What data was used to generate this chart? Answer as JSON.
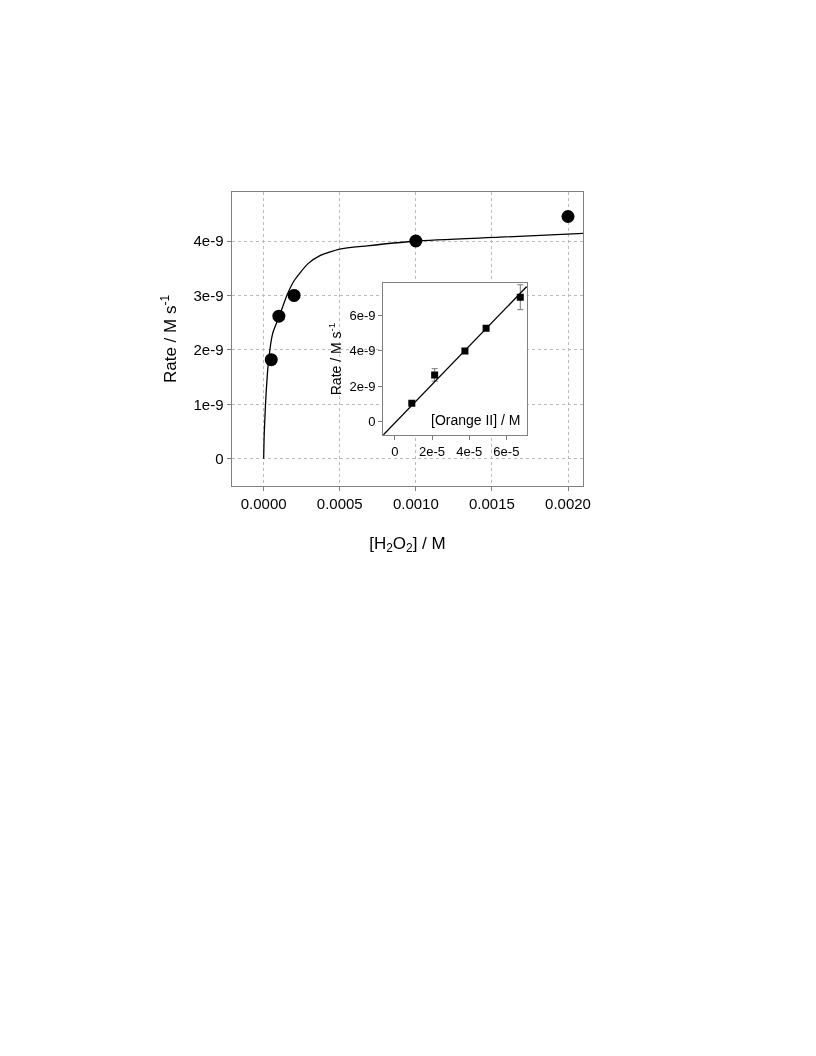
{
  "chart_data": [
    {
      "type": "scatter",
      "xlabel": "[H$_{2}$O$_{2}$] / M",
      "ylabel": "Rate / M s$^{-1}$",
      "xlim": [
        -0.00021,
        0.0021
      ],
      "ylim": [
        -5e-10,
        4.9e-09
      ],
      "xticks": [
        {
          "value": 0,
          "label": "0.0000"
        },
        {
          "value": 0.0005,
          "label": "0.0005"
        },
        {
          "value": 0.001,
          "label": "0.0010"
        },
        {
          "value": 0.0015,
          "label": "0.0015"
        },
        {
          "value": 0.002,
          "label": "0.0020"
        }
      ],
      "yticks": [
        0,
        {
          "value": 1e-09,
          "label": "1e-9"
        },
        {
          "value": 2e-09,
          "label": "2e-9"
        },
        {
          "value": 3e-09,
          "label": "3e-9"
        },
        {
          "value": 4e-09,
          "label": "4e-9"
        }
      ],
      "grid": true,
      "series": [
        {
          "marker": "circle",
          "color": "#000000",
          "x": [
            5e-05,
            0.0001,
            0.0002,
            0.001,
            0.002
          ],
          "values": [
            1.82e-09,
            2.62e-09,
            3e-09,
            4e-09,
            4.45e-09
          ],
          "errors": [
            null,
            null,
            1e-10,
            1e-10,
            null
          ]
        },
        {
          "type": "line",
          "color": "#000000",
          "x": [
            0,
            4e-06,
            1.5e-05,
            3.3e-05,
            5.9e-05,
            0.0001,
            0.000157,
            0.0002,
            0.00029,
            0.00037,
            0.0005,
            0.00068,
            0.001,
            0.00155,
            0.0021
          ],
          "values": [
            0,
            4.8e-10,
            1.15e-09,
            1.82e-09,
            2.3e-09,
            2.6e-09,
            3.03e-09,
            3.27e-09,
            3.58e-09,
            3.73e-09,
            3.85e-09,
            3.91e-09,
            4e-09,
            4.07e-09,
            4.14e-09
          ]
        }
      ]
    },
    {
      "type": "scatter",
      "xlabel": "[Orange II] / M",
      "ylabel": "Rate / M s$^{-1}$",
      "xlim": [
        -6.3e-06,
        7.1e-05
      ],
      "ylim": [
        -7.5e-10,
        7.8e-09
      ],
      "xticks": [
        0,
        {
          "value": 2e-05,
          "label": "2e-5"
        },
        {
          "value": 4e-05,
          "label": "4e-5"
        },
        {
          "value": 6e-05,
          "label": "6e-5"
        }
      ],
      "yticks": [
        0,
        {
          "value": 2e-09,
          "label": "2e-9"
        },
        {
          "value": 4e-09,
          "label": "4e-9"
        },
        {
          "value": 6e-09,
          "label": "6e-9"
        }
      ],
      "series": [
        {
          "marker": "square",
          "color": "#000000",
          "x": [
            9.1e-06,
            2.14e-05,
            3.77e-05,
            4.91e-05,
            6.75e-05
          ],
          "values": [
            1.03e-09,
            2.63e-09,
            3.98e-09,
            5.25e-09,
            7e-09
          ],
          "errors": [
            null,
            3.5e-10,
            null,
            null,
            7e-10
          ]
        },
        {
          "type": "line",
          "color": "#000000",
          "x": [
            -6.3e-06,
            7.1e-05
          ],
          "values": [
            -7.5e-10,
            7.6e-09
          ]
        }
      ]
    }
  ]
}
